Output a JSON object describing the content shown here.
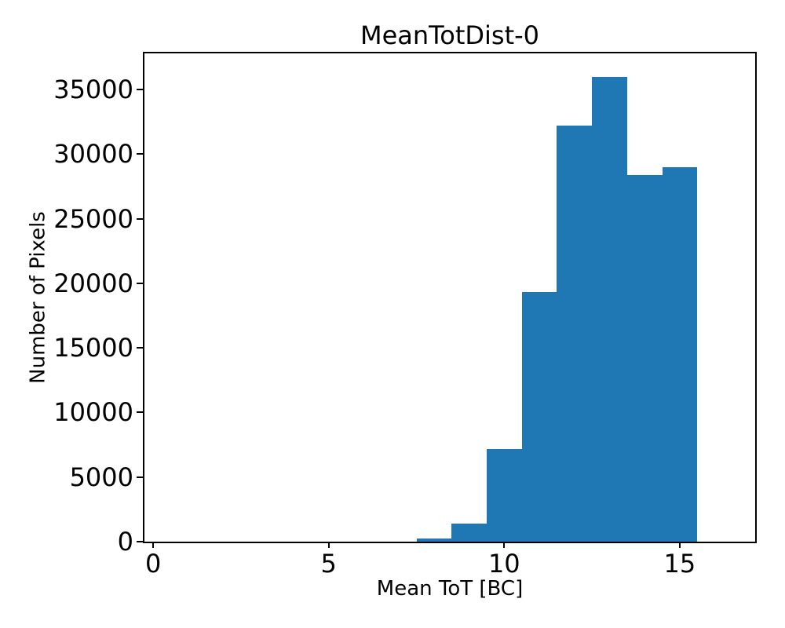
{
  "figure": {
    "background_color": "#ffffff",
    "frame_color": "#000000",
    "text_color": "#000000"
  },
  "chart_data": {
    "type": "bar",
    "subtype": "histogram",
    "title": "MeanTotDist-0",
    "xlabel": "Mean ToT [BC]",
    "ylabel": "Number of Pixels",
    "bin_edges": [
      7.5,
      8.5,
      9.5,
      10.5,
      11.5,
      12.5,
      13.5,
      14.5,
      15.5
    ],
    "counts": [
      250,
      1400,
      7200,
      19300,
      32200,
      36000,
      28400,
      29000
    ],
    "bar_color": "#1f77b4",
    "xlim": [
      -0.25,
      17.15
    ],
    "ylim": [
      0,
      37800
    ],
    "xticks": [
      0,
      5,
      10,
      15
    ],
    "yticks": [
      0,
      5000,
      10000,
      15000,
      20000,
      25000,
      30000,
      35000
    ],
    "grid": false,
    "legend": null
  }
}
